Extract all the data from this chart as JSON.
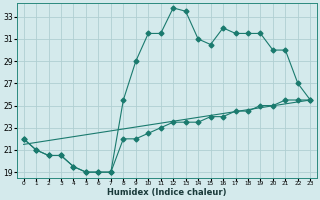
{
  "xlabel": "Humidex (Indice chaleur)",
  "bg_color": "#d4eaec",
  "grid_color": "#b0cfd2",
  "line_color": "#1a7a6e",
  "xlim": [
    -0.5,
    23.5
  ],
  "ylim": [
    18.5,
    34.2
  ],
  "xticks": [
    0,
    1,
    2,
    3,
    4,
    5,
    6,
    7,
    8,
    9,
    10,
    11,
    12,
    13,
    14,
    15,
    16,
    17,
    18,
    19,
    20,
    21,
    22,
    23
  ],
  "yticks": [
    19,
    21,
    23,
    25,
    27,
    29,
    31,
    33
  ],
  "line1_x": [
    0,
    1,
    2,
    3,
    4,
    5,
    6,
    7,
    8,
    9,
    10,
    11,
    12,
    13,
    14,
    15,
    16,
    17,
    18,
    19,
    20,
    21,
    22,
    23
  ],
  "line1_y": [
    22.0,
    21.0,
    20.5,
    20.5,
    19.5,
    19.0,
    19.0,
    19.0,
    25.5,
    29.0,
    31.5,
    31.5,
    33.8,
    33.5,
    31.0,
    30.5,
    32.0,
    31.5,
    31.5,
    31.5,
    30.0,
    30.0,
    27.0,
    25.5
  ],
  "line2_x": [
    0,
    1,
    2,
    3,
    4,
    5,
    6,
    7,
    8,
    9,
    10,
    11,
    12,
    13,
    14,
    15,
    16,
    17,
    18,
    19,
    20,
    21,
    22,
    23
  ],
  "line2_y": [
    22.0,
    21.0,
    20.5,
    20.5,
    19.5,
    19.0,
    19.0,
    19.0,
    22.0,
    22.0,
    22.5,
    23.0,
    23.5,
    23.5,
    23.5,
    24.0,
    24.0,
    24.5,
    24.5,
    25.0,
    25.0,
    25.5,
    25.5,
    25.5
  ],
  "line3_x": [
    0,
    23
  ],
  "line3_y": [
    21.5,
    25.5
  ],
  "markersize": 2.5
}
